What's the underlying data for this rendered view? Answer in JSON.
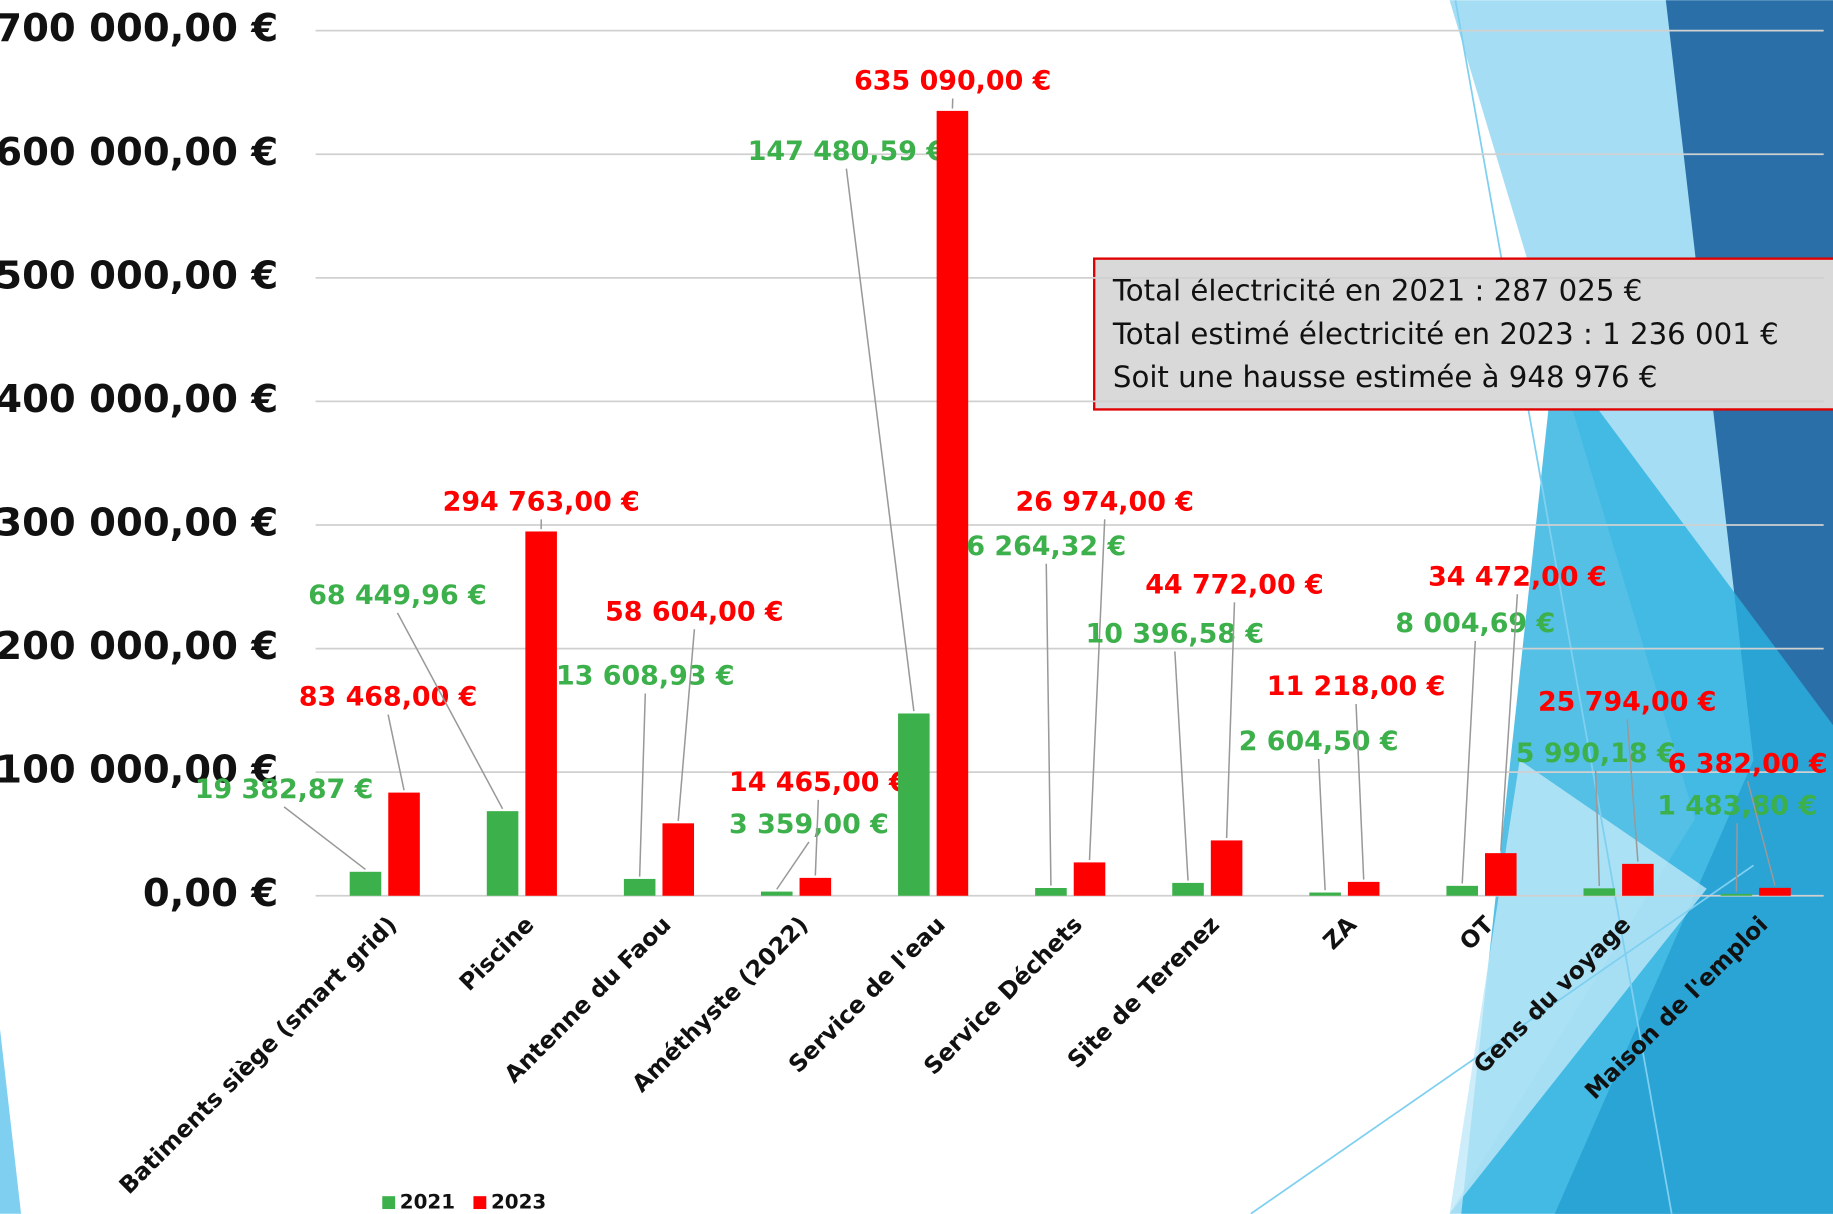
{
  "chart_data": {
    "type": "bar",
    "categories": [
      "Batiments siège (smart grid)",
      "Piscine",
      "Antenne du Faou",
      "Améthyste (2022)",
      "Service de l'eau",
      "Service Déchets",
      "Site de Terenez",
      "ZA",
      "OT",
      "Gens du voyage",
      "Maison de l'emploi"
    ],
    "series": [
      {
        "name": "2021",
        "color": "#3cb04a",
        "values": [
          19382.87,
          68449.96,
          13608.93,
          3359.0,
          147480.59,
          6264.32,
          10396.58,
          2604.5,
          8004.69,
          5990.18,
          1483.8
        ],
        "value_labels": [
          "19 382,87 €",
          "68 449,96 €",
          "13 608,93 €",
          "3 359,00 €",
          "147 480,59 €",
          "6 264,32 €",
          "10 396,58 €",
          "2 604,50 €",
          "8 004,69 €",
          "5 990,18 €",
          "1 483,80 €"
        ]
      },
      {
        "name": "2023",
        "color": "#ff0000",
        "values": [
          83468.0,
          294763.0,
          58604.0,
          14465.0,
          635090.0,
          26974.0,
          44772.0,
          11218.0,
          34472.0,
          25794.0,
          6382.0
        ],
        "value_labels": [
          "83 468,00 €",
          "294 763,00 €",
          "58 604,00 €",
          "14 465,00 €",
          "635 090,00 €",
          "26 974,00 €",
          "44 772,00 €",
          "11 218,00 €",
          "34 472,00 €",
          "25 794,00 €",
          "6 382,00 €"
        ]
      }
    ],
    "ylim": [
      0,
      700000
    ],
    "yticks": [
      {
        "value": 0,
        "label": "0,00 €"
      },
      {
        "value": 100000,
        "label": "100 000,00 €"
      },
      {
        "value": 200000,
        "label": "200 000,00 €"
      },
      {
        "value": 300000,
        "label": "300 000,00 €"
      },
      {
        "value": 400000,
        "label": "400 000,00 €"
      },
      {
        "value": 500000,
        "label": "500 000,00 €"
      },
      {
        "value": 600000,
        "label": "600 000,00 €"
      },
      {
        "value": 700000,
        "label": "700 000,00 €"
      }
    ],
    "grid": true,
    "annotations": [
      "Total électricité en 2021 : 287 025 €",
      "Total estimé électricité en 2023 : 1 236 001 €",
      "Soit une hausse estimée à 948 976 €"
    ]
  }
}
